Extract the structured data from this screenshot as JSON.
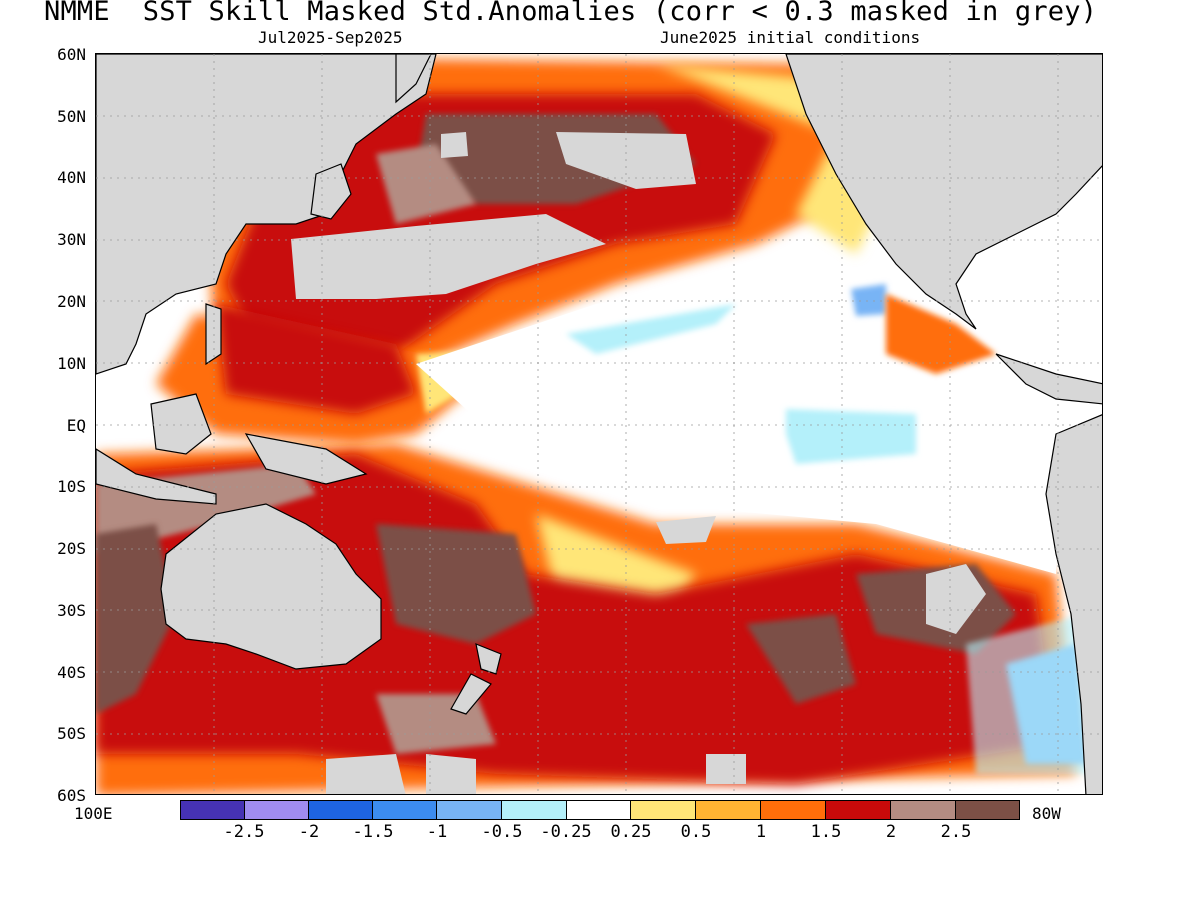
{
  "title": "NMME  SST Skill Masked Std.Anomalies (corr < 0.3 masked in grey)",
  "subtitle_left": "Jul2025-Sep2025",
  "subtitle_right": "June2025 initial conditions",
  "lat_labels": [
    "60N",
    "50N",
    "40N",
    "30N",
    "20N",
    "10N",
    "EQ",
    "10S",
    "20S",
    "30S",
    "40S",
    "50S",
    "60S"
  ],
  "lon_labels": {
    "west": "100E",
    "east": "80W"
  },
  "colorbar": {
    "colors": [
      "#4632b4",
      "#a08cf0",
      "#1e64e1",
      "#3c8cf0",
      "#78b4f5",
      "#b4f0fa",
      "#ffffff",
      "#ffe678",
      "#ffb432",
      "#ff6e0a",
      "#c80a0a",
      "#b48c82",
      "#7c5046"
    ],
    "labels": [
      "-2.5",
      "-2",
      "-1.5",
      "-1",
      "-0.5",
      "-0.25",
      "0.25",
      "0.5",
      "1",
      "1.5",
      "2",
      "2.5"
    ]
  },
  "colors": {
    "land": "#d7d7d7",
    "masked": "#d7d7d7"
  }
}
